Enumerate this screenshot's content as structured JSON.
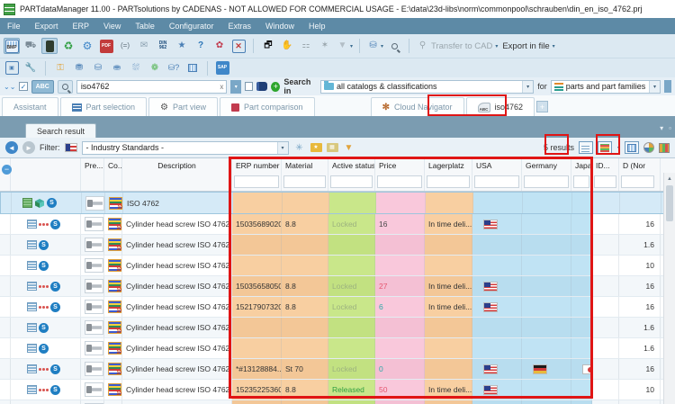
{
  "window": {
    "title": "PARTdataManager 11.00 - PARTsolutions by CADENAS - NOT ALLOWED FOR COMMERCIAL USAGE - E:\\data\\23d-libs\\norm\\commonpool\\schrauben\\din_en_iso_4762.prj"
  },
  "menu": {
    "items": [
      "File",
      "Export",
      "ERP",
      "View",
      "Table",
      "Configurator",
      "Extras",
      "Window",
      "Help"
    ]
  },
  "icons": {
    "bmp": "BMP",
    "din_top": "DIN",
    "din_bottom": "962",
    "paren_eq": "(=)",
    "question": "?",
    "star": "★",
    "envelope": "✉",
    "pdf": "PDF",
    "sap": "SAP",
    "dropdown": "▾",
    "clear_x": "x",
    "plus": "+",
    "abc": "ABC",
    "up_arrow": "▲",
    "back": "◄",
    "fwd": "►",
    "minus": "−",
    "s_badge": "S",
    "float": "▾",
    "dock": "▫"
  },
  "toolbar1": {
    "transfer_to_cad": "Transfer to CAD",
    "export_in_file": "Export in file"
  },
  "search": {
    "query": "iso4762",
    "search_in_label": "Search in",
    "search_in_value": "all catalogs & classifications",
    "for_label": "for",
    "for_value": "parts and part families"
  },
  "tabs": [
    {
      "label": "Assistant"
    },
    {
      "label": "Part selection"
    },
    {
      "label": "Part view"
    },
    {
      "label": "Part comparison"
    },
    {
      "label": "Cloud Navigator"
    },
    {
      "label": "iso4762"
    }
  ],
  "panel": {
    "title": "Search result"
  },
  "filter": {
    "label": "Filter:",
    "value": "- Industry Standards -",
    "results": "5 results"
  },
  "table": {
    "columns": {
      "pre": "Pre...",
      "co": "Co...",
      "description": "Description",
      "erp": "ERP number",
      "material": "Material",
      "status": "Active status",
      "price": "Price",
      "lagerplatz": "Lagerplatz",
      "usa": "USA",
      "germany": "Germany",
      "japan": "Japan",
      "id": "ID...",
      "d": "D (Nor"
    },
    "parent_row": {
      "description": "ISO 4762"
    },
    "rows": [
      {
        "description": "Cylinder head screw ISO 4762 ...",
        "erp": "15035689020",
        "material": "8.8",
        "status": "Locked",
        "price": "16",
        "price_color": "dark",
        "lagerplatz": "In time deli...",
        "flags": [
          "usa"
        ],
        "id": "",
        "d": "16",
        "has_erp": true
      },
      {
        "description": "Cylinder head screw ISO 4762 ...",
        "erp": "",
        "material": "",
        "status": "",
        "price": "",
        "price_color": "dark",
        "lagerplatz": "",
        "flags": [],
        "id": "",
        "d": "1.6",
        "has_erp": false
      },
      {
        "description": "Cylinder head screw ISO 4762 ...",
        "erp": "",
        "material": "",
        "status": "",
        "price": "",
        "price_color": "dark",
        "lagerplatz": "",
        "flags": [],
        "id": "",
        "d": "10",
        "has_erp": false
      },
      {
        "description": "Cylinder head screw ISO 4762 ...",
        "erp": "15035658050",
        "material": "8.8",
        "status": "Locked",
        "price": "27",
        "price_color": "red",
        "lagerplatz": "In time deli...",
        "flags": [
          "usa"
        ],
        "id": "",
        "d": "16",
        "has_erp": true
      },
      {
        "description": "Cylinder head screw ISO 4762 ...",
        "erp": "15217907320",
        "material": "8.8",
        "status": "Locked",
        "price": "6",
        "price_color": "teal",
        "lagerplatz": "In time deli...",
        "flags": [
          "usa"
        ],
        "id": "",
        "d": "16",
        "has_erp": true
      },
      {
        "description": "Cylinder head screw ISO 4762 ...",
        "erp": "",
        "material": "",
        "status": "",
        "price": "",
        "price_color": "dark",
        "lagerplatz": "",
        "flags": [],
        "id": "",
        "d": "1.6",
        "has_erp": false
      },
      {
        "description": "Cylinder head screw ISO 4762 ...",
        "erp": "",
        "material": "",
        "status": "",
        "price": "",
        "price_color": "dark",
        "lagerplatz": "",
        "flags": [],
        "id": "",
        "d": "1.6",
        "has_erp": false
      },
      {
        "description": "Cylinder head screw ISO 4762 ...",
        "erp": "*#13128884...",
        "material": "St 70",
        "status": "Locked",
        "price": "0",
        "price_color": "teal",
        "lagerplatz": "",
        "flags": [
          "usa",
          "germany",
          "japan"
        ],
        "id": "",
        "d": "16",
        "has_erp": true
      },
      {
        "description": "Cylinder head screw ISO 4762 ...",
        "erp": "15235225360",
        "material": "8.8",
        "status": "Released",
        "price": "50",
        "price_color": "red",
        "lagerplatz": "In time deli...",
        "flags": [
          "usa"
        ],
        "id": "",
        "d": "10",
        "has_erp": true
      },
      {
        "description": "Cylinder head screw ISO 4762 ...",
        "erp": "",
        "material": "",
        "status": "",
        "price": "",
        "price_color": "dark",
        "lagerplatz": "",
        "flags": [],
        "id": "",
        "d": "",
        "has_erp": false
      }
    ]
  },
  "colors": {
    "accent_red": "#e01515",
    "peach": "#f8cfa1",
    "green": "#c9e78a",
    "pink": "#f9c8db",
    "blue": "#c0e3f4"
  }
}
